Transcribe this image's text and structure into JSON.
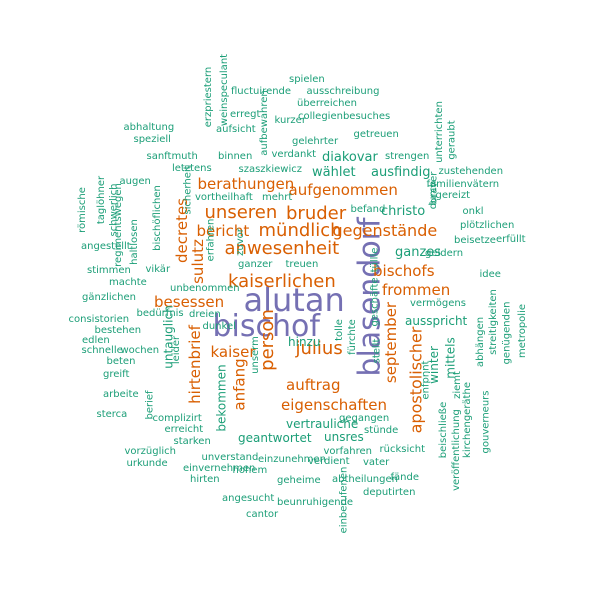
{
  "colors": {
    "large": "#7570b3",
    "medium": "#d95f02",
    "small": "#1b9e77",
    "background": "#ffffff"
  },
  "words": [
    {
      "text": "alutan",
      "tier": "large"
    },
    {
      "text": "blasendorf",
      "tier": "large"
    },
    {
      "text": "bischof",
      "tier": "large"
    },
    {
      "text": "unseren",
      "tier": "medium"
    },
    {
      "text": "bruder",
      "tier": "medium"
    },
    {
      "text": "mündlich",
      "tier": "medium"
    },
    {
      "text": "kaiserlichen",
      "tier": "medium"
    },
    {
      "text": "anwesenheit",
      "tier": "medium"
    },
    {
      "text": "person",
      "tier": "medium"
    },
    {
      "text": "julius",
      "tier": "medium"
    },
    {
      "text": "apostolischer",
      "tier": "medium"
    },
    {
      "text": "gegenstände",
      "tier": "medium"
    },
    {
      "text": "berathungen",
      "tier": "medium"
    },
    {
      "text": "aufgenommen",
      "tier": "medium"
    },
    {
      "text": "bericht",
      "tier": "medium"
    },
    {
      "text": "decretes",
      "tier": "medium"
    },
    {
      "text": "sulutz",
      "tier": "medium"
    },
    {
      "text": "bischofs",
      "tier": "medium"
    },
    {
      "text": "frommen",
      "tier": "medium"
    },
    {
      "text": "besessen",
      "tier": "medium"
    },
    {
      "text": "kaiser",
      "tier": "medium"
    },
    {
      "text": "hirtenbrief",
      "tier": "medium"
    },
    {
      "text": "anfang",
      "tier": "medium"
    },
    {
      "text": "auftrag",
      "tier": "medium"
    },
    {
      "text": "eigenschaften",
      "tier": "medium"
    },
    {
      "text": "september",
      "tier": "medium"
    },
    {
      "text": "wählet",
      "tier": "small"
    },
    {
      "text": "ausfindig",
      "tier": "small"
    },
    {
      "text": "diakovar",
      "tier": "small"
    },
    {
      "text": "christo",
      "tier": "small"
    },
    {
      "text": "ganzes",
      "tier": "small"
    },
    {
      "text": "hinzu",
      "tier": "small"
    },
    {
      "text": "vertrauliche",
      "tier": "small"
    },
    {
      "text": "geantwortet",
      "tier": "small"
    },
    {
      "text": "unsres",
      "tier": "small"
    },
    {
      "text": "ausspricht",
      "tier": "small"
    },
    {
      "text": "winter",
      "tier": "small"
    },
    {
      "text": "mittels",
      "tier": "small"
    },
    {
      "text": "untauglich",
      "tier": "small"
    },
    {
      "text": "bekommen",
      "tier": "small"
    },
    {
      "text": "spielen",
      "tier": "small"
    },
    {
      "text": "fluctuirende",
      "tier": "small"
    },
    {
      "text": "ausschreibung",
      "tier": "small"
    },
    {
      "text": "überreichen",
      "tier": "small"
    },
    {
      "text": "collegienbesuches",
      "tier": "small"
    },
    {
      "text": "erregt",
      "tier": "small"
    },
    {
      "text": "kurzer",
      "tier": "small"
    },
    {
      "text": "aufsicht",
      "tier": "small"
    },
    {
      "text": "gelehrter",
      "tier": "small"
    },
    {
      "text": "getreuen",
      "tier": "small"
    },
    {
      "text": "abhaltung",
      "tier": "small"
    },
    {
      "text": "speziell",
      "tier": "small"
    },
    {
      "text": "sanftmuth",
      "tier": "small"
    },
    {
      "text": "binnen",
      "tier": "small"
    },
    {
      "text": "verdankt",
      "tier": "small"
    },
    {
      "text": "strengen",
      "tier": "small"
    },
    {
      "text": "letztens",
      "tier": "small"
    },
    {
      "text": "szaszkiewicz",
      "tier": "small"
    },
    {
      "text": "zustehenden",
      "tier": "small"
    },
    {
      "text": "familienvätern",
      "tier": "small"
    },
    {
      "text": "gereizt",
      "tier": "small"
    },
    {
      "text": "augen",
      "tier": "small"
    },
    {
      "text": "vortheilhaft",
      "tier": "small"
    },
    {
      "text": "mehrt",
      "tier": "small"
    },
    {
      "text": "befand",
      "tier": "small"
    },
    {
      "text": "onkl",
      "tier": "small"
    },
    {
      "text": "plötzlichen",
      "tier": "small"
    },
    {
      "text": "beisetze",
      "tier": "small"
    },
    {
      "text": "erfüllt",
      "tier": "small"
    },
    {
      "text": "geldern",
      "tier": "small"
    },
    {
      "text": "angestellt",
      "tier": "small"
    },
    {
      "text": "ganzer",
      "tier": "small"
    },
    {
      "text": "treuen",
      "tier": "small"
    },
    {
      "text": "stimmen",
      "tier": "small"
    },
    {
      "text": "vikär",
      "tier": "small"
    },
    {
      "text": "machte",
      "tier": "small"
    },
    {
      "text": "unbenommen",
      "tier": "small"
    },
    {
      "text": "idee",
      "tier": "small"
    },
    {
      "text": "gänzlichen",
      "tier": "small"
    },
    {
      "text": "vermögens",
      "tier": "small"
    },
    {
      "text": "consistorien",
      "tier": "small"
    },
    {
      "text": "bedürfnis",
      "tier": "small"
    },
    {
      "text": "dreien",
      "tier": "small"
    },
    {
      "text": "bestehen",
      "tier": "small"
    },
    {
      "text": "dunkel",
      "tier": "small"
    },
    {
      "text": "edlen",
      "tier": "small"
    },
    {
      "text": "schnelle",
      "tier": "small"
    },
    {
      "text": "wochen",
      "tier": "small"
    },
    {
      "text": "beten",
      "tier": "small"
    },
    {
      "text": "greift",
      "tier": "small"
    },
    {
      "text": "arbeite",
      "tier": "small"
    },
    {
      "text": "sterca",
      "tier": "small"
    },
    {
      "text": "complizirt",
      "tier": "small"
    },
    {
      "text": "erreicht",
      "tier": "small"
    },
    {
      "text": "starken",
      "tier": "small"
    },
    {
      "text": "vorzüglich",
      "tier": "small"
    },
    {
      "text": "urkunde",
      "tier": "small"
    },
    {
      "text": "unverstand",
      "tier": "small"
    },
    {
      "text": "einvernehmen",
      "tier": "small"
    },
    {
      "text": "hohem",
      "tier": "small"
    },
    {
      "text": "einzunehmen",
      "tier": "small"
    },
    {
      "text": "verdient",
      "tier": "small"
    },
    {
      "text": "vater",
      "tier": "small"
    },
    {
      "text": "vorfahren",
      "tier": "small"
    },
    {
      "text": "rücksicht",
      "tier": "small"
    },
    {
      "text": "gegangen",
      "tier": "small"
    },
    {
      "text": "stünde",
      "tier": "small"
    },
    {
      "text": "hirten",
      "tier": "small"
    },
    {
      "text": "geheime",
      "tier": "small"
    },
    {
      "text": "abtheilungen",
      "tier": "small"
    },
    {
      "text": "fände",
      "tier": "small"
    },
    {
      "text": "deputirten",
      "tier": "small"
    },
    {
      "text": "angesucht",
      "tier": "small"
    },
    {
      "text": "beunruhigende",
      "tier": "small"
    },
    {
      "text": "cantor",
      "tier": "small"
    },
    {
      "text": "erzpriestern",
      "tier": "small"
    },
    {
      "text": "weinspeculant",
      "tier": "small"
    },
    {
      "text": "aufbewahren",
      "tier": "small"
    },
    {
      "text": "unterrichten",
      "tier": "small"
    },
    {
      "text": "geraubt",
      "tier": "small"
    },
    {
      "text": "taglöhner",
      "tier": "small"
    },
    {
      "text": "schwerlich",
      "tier": "small"
    },
    {
      "text": "römische",
      "tier": "small"
    },
    {
      "text": "regimentswegen",
      "tier": "small"
    },
    {
      "text": "bischöflichen",
      "tier": "small"
    },
    {
      "text": "sicherheit",
      "tier": "small"
    },
    {
      "text": "haltlosen",
      "tier": "small"
    },
    {
      "text": "erfahren",
      "tier": "small"
    },
    {
      "text": "zuvor",
      "tier": "small"
    },
    {
      "text": "tüllle",
      "tier": "small"
    },
    {
      "text": "geschäfte",
      "tier": "small"
    },
    {
      "text": "stellt",
      "tier": "small"
    },
    {
      "text": "fürchte",
      "tier": "small"
    },
    {
      "text": "tolle",
      "tier": "small"
    },
    {
      "text": "leider",
      "tier": "small"
    },
    {
      "text": "unserm",
      "tier": "small"
    },
    {
      "text": "berief",
      "tier": "small"
    },
    {
      "text": "einberufenen",
      "tier": "small"
    },
    {
      "text": "braver",
      "tier": "small"
    },
    {
      "text": "durch",
      "tier": "small"
    },
    {
      "text": "enfpnnt",
      "tier": "small"
    },
    {
      "text": "ziemt",
      "tier": "small"
    },
    {
      "text": "abhängen",
      "tier": "small"
    },
    {
      "text": "streitigkeiten",
      "tier": "small"
    },
    {
      "text": "genügenden",
      "tier": "small"
    },
    {
      "text": "metropolie",
      "tier": "small"
    },
    {
      "text": "kirchengeräthe",
      "tier": "small"
    },
    {
      "text": "gouverneurs",
      "tier": "small"
    },
    {
      "text": "beischließe",
      "tier": "small"
    },
    {
      "text": "veröffentlichung",
      "tier": "small"
    },
    {
      "text": "zurückgekommen",
      "tier": "small"
    }
  ]
}
